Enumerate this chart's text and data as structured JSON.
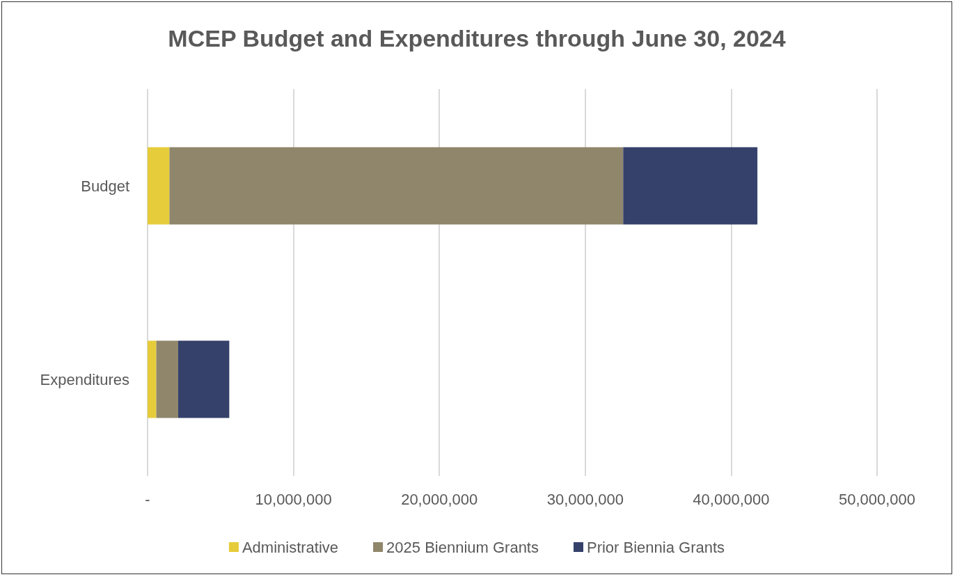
{
  "chart_data": {
    "type": "bar",
    "orientation": "horizontal",
    "stacked": true,
    "title": "MCEP Budget and Expenditures through June 30, 2024",
    "categories": [
      "Budget",
      "Expenditures"
    ],
    "series": [
      {
        "name": "Administrative",
        "color": "#e6cc3a",
        "values": [
          1500000,
          600000
        ]
      },
      {
        "name": "2025 Biennium Grants",
        "color": "#8f866b",
        "values": [
          31100000,
          1500000
        ]
      },
      {
        "name": "Prior Biennia Grants",
        "color": "#35416b",
        "values": [
          9200000,
          3500000
        ]
      }
    ],
    "xlim": [
      0,
      50000000
    ],
    "xticks": [
      {
        "value": 0,
        "label": "-"
      },
      {
        "value": 10000000,
        "label": "10,000,000"
      },
      {
        "value": 20000000,
        "label": "20,000,000"
      },
      {
        "value": 30000000,
        "label": "30,000,000"
      },
      {
        "value": 40000000,
        "label": "40,000,000"
      },
      {
        "value": 50000000,
        "label": "50,000,000"
      }
    ],
    "grid": "x",
    "legend": "bottom"
  }
}
